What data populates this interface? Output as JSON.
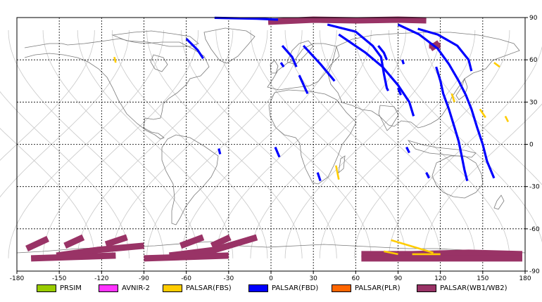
{
  "map": {
    "lon_range": [
      -180,
      180
    ],
    "lat_range": [
      -90,
      90
    ],
    "lon_ticks": [
      -180,
      -150,
      -120,
      -90,
      -60,
      -30,
      0,
      30,
      60,
      90,
      120,
      150,
      180
    ],
    "lat_ticks": [
      90,
      60,
      30,
      0,
      -30,
      -60,
      -90
    ],
    "lon_tick_labels": [
      "-180",
      "-150",
      "-120",
      "-90",
      "-60",
      "-30",
      "0",
      "30",
      "60",
      "90",
      "120",
      "150",
      "180"
    ],
    "lat_tick_labels": [
      "90",
      "60",
      "30",
      "0",
      "-30",
      "-60",
      "-90"
    ],
    "grid": "dashed",
    "orbit_track_color": "#c8c8c8",
    "coastline_color": "#7a7a7a"
  },
  "legend": {
    "items": [
      {
        "label": "PRSIM",
        "color": "#99cc00"
      },
      {
        "label": "AVNIR-2",
        "color": "#ff33ff"
      },
      {
        "label": "PALSAR(FBS)",
        "color": "#ffcc00"
      },
      {
        "label": "PALSAR(FBD)",
        "color": "#0000ff"
      },
      {
        "label": "PALSAR(PLR)",
        "color": "#ff6600"
      },
      {
        "label": "PALSAR(WB1/WB2)",
        "color": "#993366"
      }
    ]
  },
  "observations": {
    "fbd_swaths": [
      {
        "points": [
          [
            -40,
            89.8
          ],
          [
            -10,
            89.2
          ],
          [
            5,
            88.5
          ]
        ]
      },
      {
        "points": [
          [
            -60,
            75
          ],
          [
            -52,
            67
          ],
          [
            -48,
            61
          ]
        ]
      },
      {
        "points": [
          [
            8,
            70
          ],
          [
            15,
            62
          ],
          [
            18,
            55
          ]
        ]
      },
      {
        "points": [
          [
            23,
            70
          ],
          [
            35,
            57
          ],
          [
            45,
            45
          ]
        ]
      },
      {
        "points": [
          [
            20,
            49
          ],
          [
            25,
            38
          ],
          [
            26,
            36
          ]
        ]
      },
      {
        "points": [
          [
            48,
            78
          ],
          [
            67,
            65
          ],
          [
            79,
            55
          ],
          [
            90,
            42
          ],
          [
            98,
            30
          ],
          [
            101,
            20
          ]
        ]
      },
      {
        "points": [
          [
            40,
            85
          ],
          [
            60,
            80
          ],
          [
            72,
            70
          ],
          [
            78,
            62
          ],
          [
            80,
            50
          ],
          [
            82,
            40
          ],
          [
            83,
            38
          ]
        ]
      },
      {
        "points": [
          [
            90,
            85
          ],
          [
            105,
            78
          ],
          [
            118,
            68
          ],
          [
            126,
            57
          ],
          [
            133,
            45
          ],
          [
            138,
            35
          ],
          [
            142,
            25
          ],
          [
            146,
            12
          ],
          [
            150,
            0
          ],
          [
            153,
            -12
          ],
          [
            158,
            -24
          ]
        ]
      },
      {
        "points": [
          [
            104,
            82
          ],
          [
            118,
            78
          ],
          [
            132,
            70
          ],
          [
            140,
            60
          ],
          [
            142,
            52
          ]
        ]
      },
      {
        "points": [
          [
            76,
            70
          ],
          [
            80,
            65
          ],
          [
            82,
            60
          ]
        ]
      },
      {
        "points": [
          [
            117,
            55
          ],
          [
            120,
            45
          ],
          [
            122,
            36
          ],
          [
            126,
            25
          ],
          [
            130,
            12
          ],
          [
            133,
            2
          ],
          [
            135,
            -8
          ],
          [
            137,
            -18
          ],
          [
            139,
            -26
          ]
        ]
      },
      {
        "points": [
          [
            3,
            -2
          ],
          [
            6,
            -9
          ]
        ]
      },
      {
        "points": [
          [
            -37,
            -3
          ],
          [
            -36,
            -7
          ]
        ]
      },
      {
        "points": [
          [
            33,
            -20
          ],
          [
            35,
            -26
          ]
        ]
      },
      {
        "points": [
          [
            110,
            -20
          ],
          [
            112,
            -24
          ]
        ]
      },
      {
        "points": [
          [
            96,
            -2
          ],
          [
            98,
            -6
          ]
        ]
      },
      {
        "points": [
          [
            7,
            58
          ],
          [
            9,
            55
          ]
        ]
      },
      {
        "points": [
          [
            90,
            40
          ],
          [
            92,
            35
          ]
        ]
      },
      {
        "points": [
          [
            93,
            60
          ],
          [
            94,
            57
          ]
        ]
      }
    ],
    "fbs_swaths": [
      {
        "points": [
          [
            -111,
            62
          ],
          [
            -110,
            58
          ]
        ]
      },
      {
        "points": [
          [
            46,
            -15
          ],
          [
            48,
            -25
          ]
        ]
      },
      {
        "points": [
          [
            128,
            36
          ],
          [
            130,
            30
          ]
        ]
      },
      {
        "points": [
          [
            148,
            25
          ],
          [
            152,
            19
          ]
        ]
      },
      {
        "points": [
          [
            158,
            58
          ],
          [
            162,
            55
          ]
        ]
      },
      {
        "points": [
          [
            166,
            20
          ],
          [
            168,
            16
          ]
        ]
      },
      {
        "points": [
          [
            85,
            -68
          ],
          [
            115,
            -77
          ]
        ]
      },
      {
        "points": [
          [
            80,
            -76
          ],
          [
            90,
            -78
          ]
        ]
      },
      {
        "points": [
          [
            100,
            -78
          ],
          [
            120,
            -78
          ]
        ]
      }
    ],
    "wb_swaths": [
      {
        "points": [
          [
            -2,
            87
          ],
          [
            30,
            88.5
          ],
          [
            60,
            88
          ],
          [
            90,
            88.5
          ],
          [
            110,
            88
          ]
        ]
      },
      {
        "points": [
          [
            113,
            68
          ],
          [
            119,
            72
          ]
        ]
      },
      {
        "points": [
          [
            -173,
            -74
          ],
          [
            -158,
            -67
          ]
        ]
      },
      {
        "points": [
          [
            -146,
            -72
          ],
          [
            -133,
            -66
          ]
        ]
      },
      {
        "points": [
          [
            -117,
            -71
          ],
          [
            -102,
            -66
          ]
        ]
      },
      {
        "points": [
          [
            -152,
            -79
          ],
          [
            -123,
            -75
          ],
          [
            -90,
            -72
          ]
        ]
      },
      {
        "points": [
          [
            -170,
            -81
          ],
          [
            -140,
            -80
          ],
          [
            -110,
            -79
          ]
        ]
      },
      {
        "points": [
          [
            -64,
            -72
          ],
          [
            -48,
            -66
          ]
        ]
      },
      {
        "points": [
          [
            -42,
            -72
          ],
          [
            -29,
            -66
          ]
        ]
      },
      {
        "points": [
          [
            -72,
            -79
          ],
          [
            -40,
            -75
          ],
          [
            -10,
            -66
          ]
        ]
      },
      {
        "points": [
          [
            -90,
            -81
          ],
          [
            -60,
            -80
          ],
          [
            -30,
            -79
          ]
        ]
      },
      {
        "points": [
          [
            64,
            -78
          ],
          [
            100,
            -78
          ],
          [
            140,
            -77
          ],
          [
            178,
            -78
          ]
        ]
      },
      {
        "points": [
          [
            64,
            -81
          ],
          [
            110,
            -81
          ],
          [
            178,
            -81
          ]
        ]
      }
    ],
    "wb_patches": [
      {
        "points": [
          [
            112,
            72
          ],
          [
            120,
            72
          ],
          [
            120,
            68
          ],
          [
            112,
            68
          ]
        ]
      }
    ]
  }
}
